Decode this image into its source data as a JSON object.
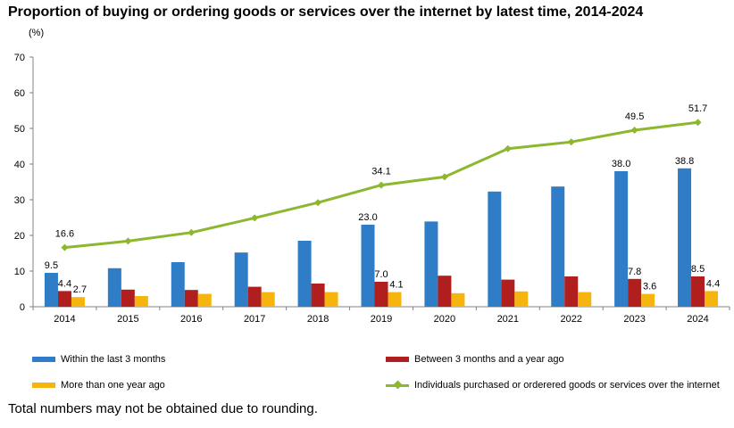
{
  "title": "Proportion of buying or ordering goods or services over the internet by latest time, 2014-2024",
  "unit_label": "(%)",
  "note": "Total numbers may not be obtained due to rounding.",
  "chart_data": {
    "type": "bar",
    "categories": [
      "2014",
      "2015",
      "2016",
      "2017",
      "2018",
      "2019",
      "2020",
      "2021",
      "2022",
      "2023",
      "2024"
    ],
    "ylim": [
      0,
      70
    ],
    "yticks": [
      "0",
      "10",
      "20",
      "30",
      "40",
      "50",
      "60",
      "70"
    ],
    "grid": false,
    "legend_position": "bottom",
    "series": [
      {
        "name": "Within the last 3 months",
        "kind": "bar",
        "color": "#2E7DC6",
        "values": [
          9.5,
          10.8,
          12.5,
          15.2,
          18.5,
          23.0,
          23.9,
          32.3,
          33.7,
          38.0,
          38.8
        ],
        "labels": [
          "9.5",
          "",
          "",
          "",
          "",
          "23.0",
          "",
          "",
          "",
          "38.0",
          "38.8"
        ]
      },
      {
        "name": "Between 3 months and a year ago",
        "kind": "bar",
        "color": "#B01E1E",
        "values": [
          4.4,
          4.8,
          4.7,
          5.6,
          6.5,
          7.0,
          8.7,
          7.6,
          8.5,
          7.8,
          8.5
        ],
        "labels": [
          "4.4",
          "",
          "",
          "",
          "",
          "7.0",
          "",
          "",
          "",
          "7.8",
          "8.5"
        ]
      },
      {
        "name": "More than one year ago",
        "kind": "bar",
        "color": "#F5B50E",
        "values": [
          2.7,
          3.0,
          3.6,
          4.1,
          4.1,
          4.1,
          3.8,
          4.3,
          4.1,
          3.6,
          4.4
        ],
        "labels": [
          "2.7",
          "",
          "",
          "",
          "",
          "4.1",
          "",
          "",
          "",
          "3.6",
          "4.4"
        ]
      },
      {
        "name": "Individuals purchased or orderered goods or services over the internet",
        "kind": "line",
        "color": "#8DB72E",
        "values": [
          16.6,
          18.4,
          20.8,
          24.9,
          29.2,
          34.1,
          36.4,
          44.3,
          46.2,
          49.5,
          51.7
        ],
        "labels": [
          "16.6",
          "",
          "",
          "",
          "",
          "34.1",
          "",
          "",
          "",
          "49.5",
          "51.7"
        ]
      }
    ]
  }
}
